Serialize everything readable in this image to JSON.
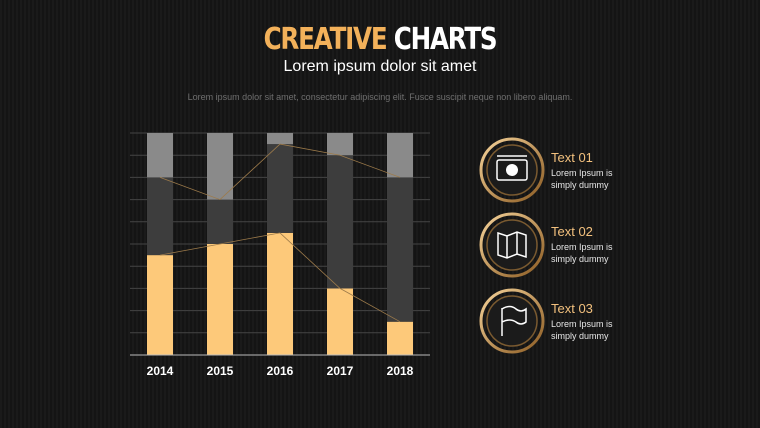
{
  "header": {
    "title_accent": "CREATIVE",
    "title_main": "CHARTS",
    "subtitle": "Lorem ipsum dolor sit amet",
    "description": "Lorem ipsum dolor sit amet, consectetur adipiscing elit. Fusce suscipit neque non libero aliquam."
  },
  "chart_data": {
    "type": "bar",
    "stacked": true,
    "categories": [
      "2014",
      "2015",
      "2016",
      "2017",
      "2018"
    ],
    "series": [
      {
        "color": "#fdc97a",
        "values": [
          45,
          50,
          55,
          30,
          15
        ]
      },
      {
        "color": "#3d3d3d",
        "values": [
          35,
          20,
          40,
          60,
          65
        ]
      },
      {
        "color": "#8a8a8a",
        "values": [
          20,
          30,
          5,
          10,
          20
        ]
      }
    ],
    "ylim": [
      0,
      100
    ],
    "yticks": [
      0,
      10,
      20,
      30,
      40,
      50,
      60,
      70,
      80,
      90,
      100
    ],
    "grid": true
  },
  "items": [
    {
      "title": "Text 01",
      "text": "Lorem Ipsum is simply dummy"
    },
    {
      "title": "Text 02",
      "text": "Lorem Ipsum is simply dummy"
    },
    {
      "title": "Text 03",
      "text": "Lorem Ipsum is simply dummy"
    }
  ]
}
